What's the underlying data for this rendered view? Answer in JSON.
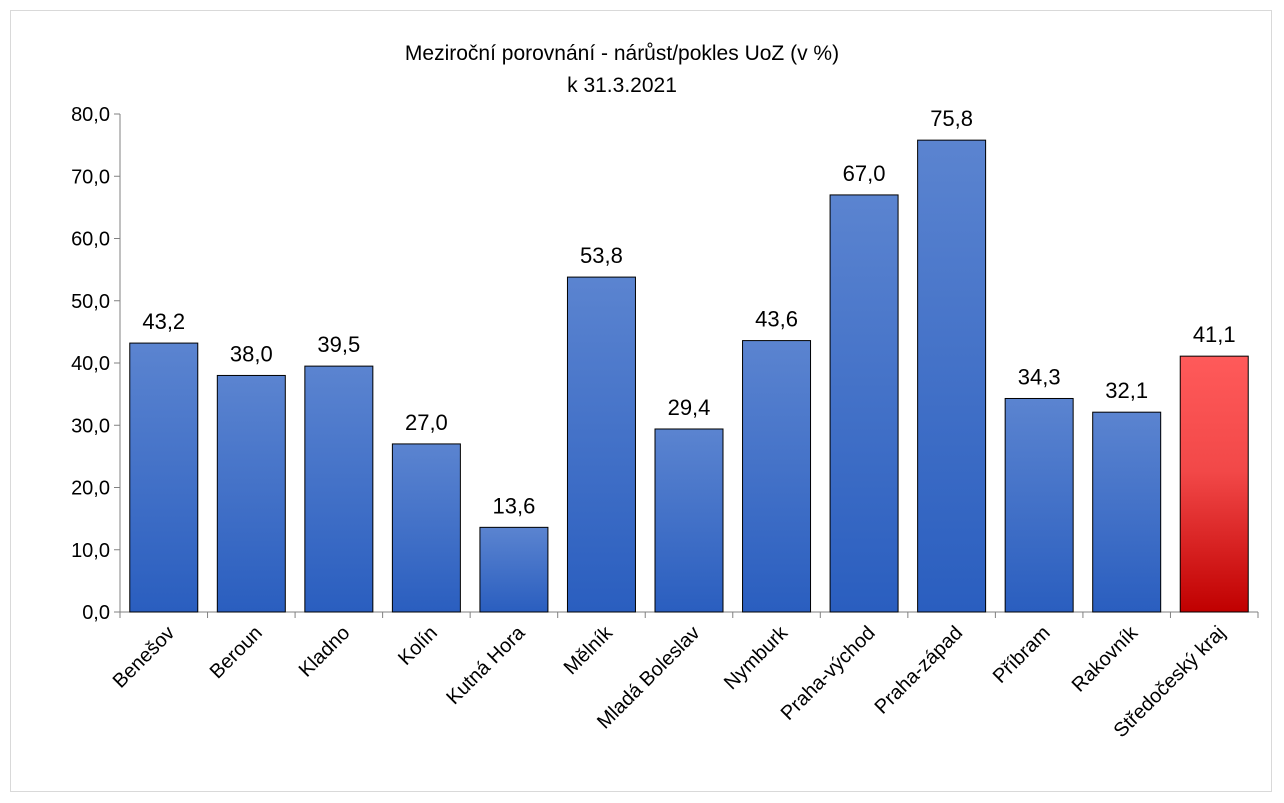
{
  "chart_data": {
    "type": "bar",
    "title": "Meziroční porovnání - nárůst/pokles UoZ (v %)",
    "subtitle": "k 31.3.2021",
    "xlabel": "",
    "ylabel": "",
    "ylim": [
      0,
      80
    ],
    "yticks": [
      "0,0",
      "10,0",
      "20,0",
      "30,0",
      "40,0",
      "50,0",
      "60,0",
      "70,0",
      "80,0"
    ],
    "grid": false,
    "categories": [
      "Benešov",
      "Beroun",
      "Kladno",
      "Kolín",
      "Kutná Hora",
      "Mělník",
      "Mladá Boleslav",
      "Nymburk",
      "Praha-východ",
      "Praha-západ",
      "Příbram",
      "Rakovník",
      "Středočeský kraj"
    ],
    "values": [
      43.2,
      38.0,
      39.5,
      27.0,
      13.6,
      53.8,
      29.4,
      43.6,
      67.0,
      75.8,
      34.3,
      32.1,
      41.1
    ],
    "value_labels": [
      "43,2",
      "38,0",
      "39,5",
      "27,0",
      "13,6",
      "53,8",
      "29,4",
      "43,6",
      "67,0",
      "75,8",
      "34,3",
      "32,1",
      "41,1"
    ],
    "colors": {
      "bar_top": "#5b84d0",
      "bar_bottom": "#2a5ebf",
      "highlight_top": "#ff5a5a",
      "highlight_bottom": "#c00000",
      "bar_stroke": "#000000"
    },
    "highlight_category": "Středočeský kraj"
  }
}
